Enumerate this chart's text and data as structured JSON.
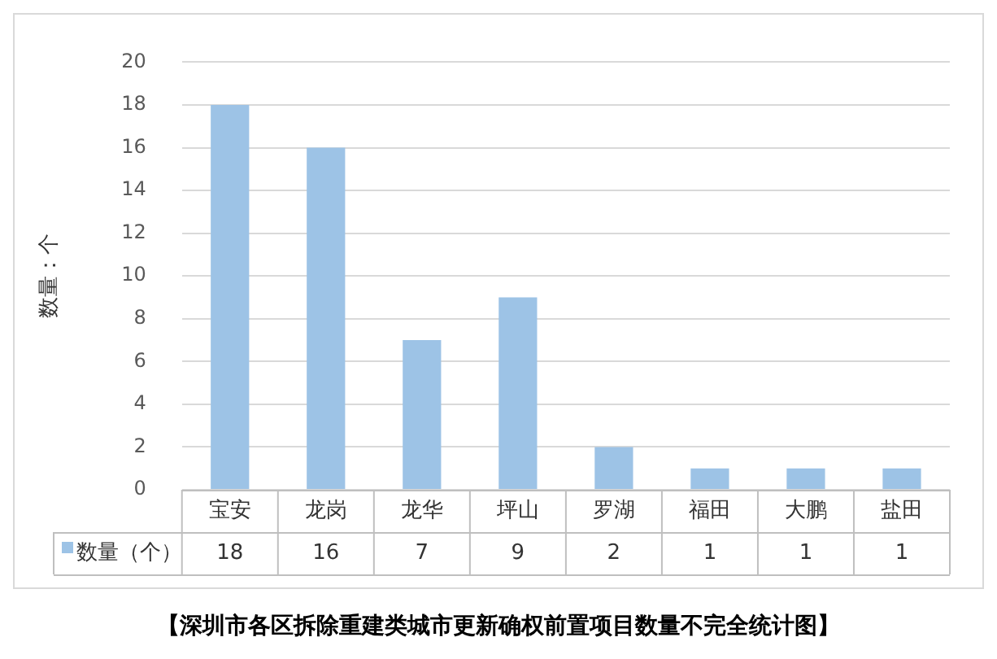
{
  "chart_data": {
    "type": "bar",
    "title": "【深圳市各区拆除重建类城市更新确权前置项目数量不完全统计图】",
    "ylabel": "数量：个",
    "categories": [
      "宝安",
      "龙岗",
      "龙华",
      "坪山",
      "罗湖",
      "福田",
      "大鹏",
      "盐田"
    ],
    "series": [
      {
        "name": "数量（个）",
        "color": "#9dc3e6",
        "values": [
          18,
          16,
          7,
          9,
          2,
          1,
          1,
          1
        ]
      }
    ],
    "ylim": [
      0,
      20
    ],
    "yticks": [
      0,
      2,
      4,
      6,
      8,
      10,
      12,
      14,
      16,
      18,
      20
    ],
    "grid": "y",
    "legend": "bottom left",
    "data_labels": true
  }
}
